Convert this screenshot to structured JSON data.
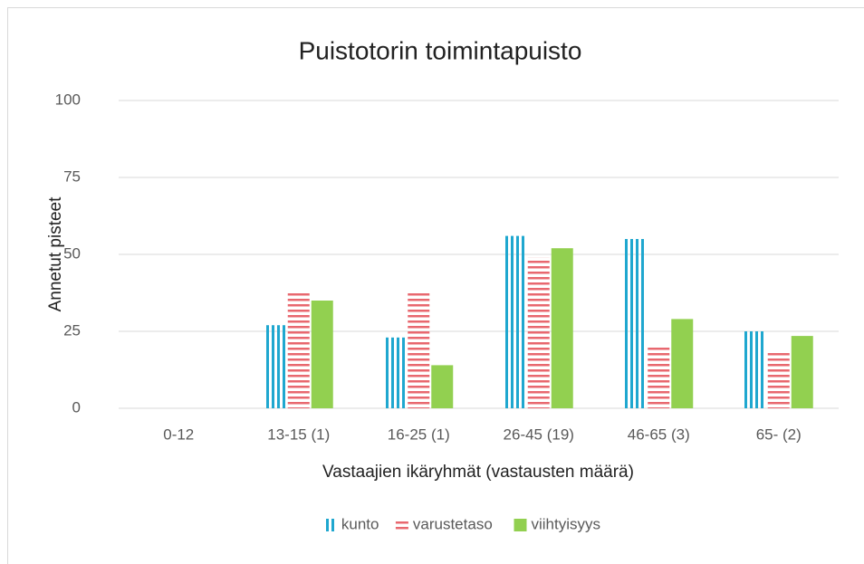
{
  "chart_data": {
    "type": "bar",
    "title": "Puistotorin toimintapuisto",
    "x_label": "Vastaajien ikäryhmät (vastausten määrä)",
    "y_label": "Annetut pisteet",
    "categories": [
      "0-12",
      "13-15 (1)",
      "16-25 (1)",
      "26-45 (19)",
      "46-65 (3)",
      "65- (2)"
    ],
    "series": [
      {
        "name": "kunto",
        "color": "#1fa7cf",
        "pattern": "vertical",
        "values": [
          null,
          27,
          23,
          56,
          55,
          25
        ]
      },
      {
        "name": "varustetaso",
        "color": "#e8686f",
        "pattern": "horizontal",
        "values": [
          null,
          38,
          38,
          49,
          20,
          18
        ]
      },
      {
        "name": "viihtyisyys",
        "color": "#92d050",
        "pattern": "solid",
        "values": [
          null,
          35,
          14,
          52,
          29,
          23.5
        ]
      }
    ],
    "ylim": [
      0,
      100
    ],
    "yticks": [
      0,
      25,
      50,
      75,
      100
    ],
    "grid": true,
    "legend": "bottom"
  }
}
